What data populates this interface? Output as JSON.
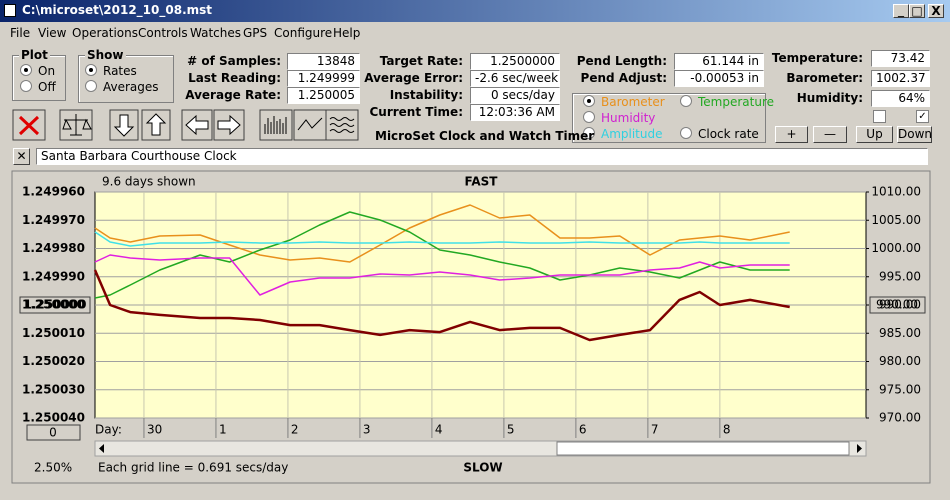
{
  "window": {
    "title": "C:\\microset\\2012_10_08.mst"
  },
  "menu": [
    "File",
    "View",
    "Operations",
    "Controls",
    "Watches",
    "GPS",
    "Configure",
    "Help"
  ],
  "plot_group": {
    "label": "Plot",
    "options": [
      "On",
      "Off"
    ],
    "selected": "On"
  },
  "show_group": {
    "label": "Show",
    "options": [
      "Rates",
      "Averages"
    ],
    "selected": "Rates"
  },
  "readouts": [
    {
      "label": "# of Samples:",
      "value": "13848"
    },
    {
      "label": "Last Reading:",
      "value": "1.249999"
    },
    {
      "label": "Average Rate:",
      "value": "1.250005"
    },
    {
      "label": "Target Rate:",
      "value": "1.2500000"
    },
    {
      "label": "Average Error:",
      "value": "-2.6 sec/week"
    },
    {
      "label": "Instability:",
      "value": "0 secs/day"
    },
    {
      "label": "Current Time:",
      "value": "12:03:36 AM"
    },
    {
      "label": "Pend Length:",
      "value": "61.144 in"
    },
    {
      "label": "Pend Adjust:",
      "value": "-0.00053 in"
    },
    {
      "label": "Temperature:",
      "value": "73.42"
    },
    {
      "label": "Barometer:",
      "value": "1002.37"
    },
    {
      "label": "Humidity:",
      "value": "64%"
    }
  ],
  "checkboxes": [
    false,
    true
  ],
  "buttons": [
    "+",
    "—",
    "Up",
    "Down"
  ],
  "app_title": "MicroSet Clock and Watch Timer",
  "clock_name": "Santa Barbara Courthouse Clock",
  "chart": {
    "type": "line",
    "days_shown": "9.6 days shown",
    "top_label": "FAST",
    "bottom_label": "SLOW",
    "x_label": "Day:",
    "grid_note": "Each grid line = 0.691 secs/day",
    "zoom": "2.50%",
    "offset_button": "0",
    "left_marker": "1.250000",
    "right_marker": "990.00",
    "grid": true,
    "xlim": [
      -0.68,
      10.03
    ],
    "xticks": [
      {
        "value": 0,
        "label": "30"
      },
      1,
      2,
      3,
      4,
      5,
      6,
      7,
      8
    ],
    "ylim": [
      1.25004,
      1.24996
    ],
    "yticks": [
      {
        "value": 1.24996,
        "label": "1.249960"
      },
      {
        "value": 1.24997,
        "label": "1.249970"
      },
      {
        "value": 1.24998,
        "label": "1.249980"
      },
      {
        "value": 1.24999,
        "label": "1.249990"
      },
      {
        "value": 1.25,
        "label": "1.250000"
      },
      {
        "value": 1.25001,
        "label": "1.250010"
      },
      {
        "value": 1.25002,
        "label": "1.250020"
      },
      {
        "value": 1.25003,
        "label": "1.250030"
      },
      {
        "value": 1.25004,
        "label": "1.250040"
      }
    ],
    "y2lim": [
      970,
      1010
    ],
    "y2ticks": [
      {
        "value": 1010,
        "label": "1010.00"
      },
      {
        "value": 1005,
        "label": "1005.00"
      },
      {
        "value": 1000,
        "label": "1000.00"
      },
      {
        "value": 995,
        "label": "995.00"
      },
      {
        "value": 990,
        "label": "990.00"
      },
      {
        "value": 985,
        "label": "985.00"
      },
      {
        "value": 980,
        "label": "980.00"
      },
      {
        "value": 975,
        "label": "975.00"
      },
      {
        "value": 970,
        "label": "970.00"
      }
    ],
    "x": [
      -0.68,
      -0.47,
      -0.19,
      0.22,
      0.78,
      1.19,
      1.61,
      2.03,
      2.44,
      2.86,
      3.28,
      3.69,
      4.11,
      4.53,
      4.94,
      5.36,
      5.78,
      6.19,
      6.61,
      7.03,
      7.44,
      7.72,
      8.0,
      8.42,
      8.97
    ],
    "series": [
      {
        "name": "Barometer",
        "color": "#e8901c",
        "legend_color": "#e8901c",
        "axis": "y2",
        "checked": true,
        "values": [
          1003.63,
          1001.86,
          1001.15,
          1002.21,
          1002.39,
          1000.62,
          998.85,
          997.96,
          998.32,
          997.61,
          1000.62,
          1003.63,
          1005.93,
          1007.7,
          1005.4,
          1005.93,
          1001.86,
          1001.86,
          1002.21,
          998.85,
          1001.5,
          1001.86,
          1002.21,
          1001.5,
          1002.92
        ]
      },
      {
        "name": "Temperature",
        "color": "#22a822",
        "legend_color": "#22a822",
        "axis": "y2",
        "checked": false,
        "values": [
          991.24,
          991.77,
          993.54,
          996.19,
          998.85,
          997.61,
          999.73,
          1001.5,
          1004.16,
          1006.46,
          1005.04,
          1002.92,
          999.73,
          998.85,
          997.61,
          996.55,
          994.42,
          995.31,
          996.55,
          995.84,
          994.78,
          996.19,
          997.61,
          996.19,
          996.19
        ]
      },
      {
        "name": "Humidity",
        "color": "#e020e0",
        "legend_color": "#d020d0",
        "axis": "y2",
        "checked": false,
        "values": [
          997.61,
          998.85,
          998.32,
          997.96,
          998.32,
          998.32,
          991.77,
          994.07,
          994.78,
          994.78,
          995.49,
          995.31,
          995.84,
          995.31,
          994.42,
          994.78,
          995.31,
          995.31,
          995.31,
          996.19,
          996.55,
          997.61,
          996.55,
          997.08,
          997.08
        ]
      },
      {
        "name": "Amplitude",
        "color": "#40e0e8",
        "legend_color": "#30d0e0",
        "axis": "y2",
        "checked": false,
        "values": [
          1002.92,
          1001.15,
          1000.44,
          1000.97,
          1000.97,
          1001.15,
          1000.97,
          1000.97,
          1001.15,
          1000.97,
          1000.97,
          1001.15,
          1000.97,
          1000.97,
          1001.15,
          1000.97,
          1000.97,
          1001.15,
          1000.97,
          1000.97,
          1000.97,
          1001.15,
          1000.97,
          1000.97,
          1000.97
        ]
      },
      {
        "name": "Clock rate",
        "color": "#800000",
        "legend_color": "#000000",
        "axis": "y",
        "checked": false,
        "values": [
          1.2499876,
          1.25,
          1.2500025,
          1.2500035,
          1.2500046,
          1.2500046,
          1.2500053,
          1.2500071,
          1.2500071,
          1.2500089,
          1.2500106,
          1.2500089,
          1.2500096,
          1.250006,
          1.2500089,
          1.2500081,
          1.2500081,
          1.2500124,
          1.2500106,
          1.2500089,
          1.2499982,
          1.2499954,
          1.25,
          1.2499982,
          1.2500007
        ]
      }
    ]
  }
}
